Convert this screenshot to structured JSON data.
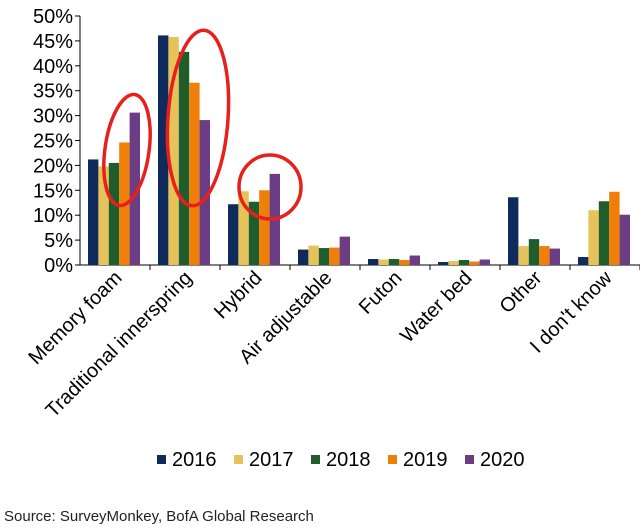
{
  "chart_data": {
    "type": "bar",
    "categories": [
      "Memory foam",
      "Traditional innerspring",
      "Hybrid",
      "Air adjustable",
      "Futon",
      "Water bed",
      "Other",
      "I don't know"
    ],
    "series": [
      {
        "name": "2016",
        "color": "#0f2a5c",
        "values": [
          21.2,
          46.1,
          12.2,
          3.1,
          1.2,
          0.6,
          13.6,
          1.6
        ]
      },
      {
        "name": "2017",
        "color": "#e6c25a",
        "values": [
          19.8,
          45.8,
          14.8,
          3.9,
          1.1,
          0.8,
          3.8,
          11.0
        ]
      },
      {
        "name": "2018",
        "color": "#1f5e2c",
        "values": [
          20.5,
          42.8,
          12.7,
          3.4,
          1.2,
          1.0,
          5.2,
          12.8
        ]
      },
      {
        "name": "2019",
        "color": "#f07f09",
        "values": [
          24.6,
          36.6,
          15.0,
          3.5,
          1.0,
          0.7,
          3.8,
          14.7
        ]
      },
      {
        "name": "2020",
        "color": "#6a3d84",
        "values": [
          30.6,
          29.1,
          18.3,
          5.7,
          1.9,
          1.1,
          3.3,
          10.1
        ]
      }
    ],
    "ylim": [
      0,
      50
    ],
    "yticks": [
      "0%",
      "5%",
      "10%",
      "15%",
      "20%",
      "25%",
      "30%",
      "35%",
      "40%",
      "45%",
      "50%"
    ],
    "grid": false,
    "legend": "bottom",
    "annotations": [
      "red circle around Memory foam 2019-2020",
      "red ellipse around Traditional innerspring",
      "red circle around Hybrid 2019-2020"
    ],
    "annotation_color": "#e8201c"
  },
  "source": "Source: SurveyMonkey, BofA  Global Research"
}
